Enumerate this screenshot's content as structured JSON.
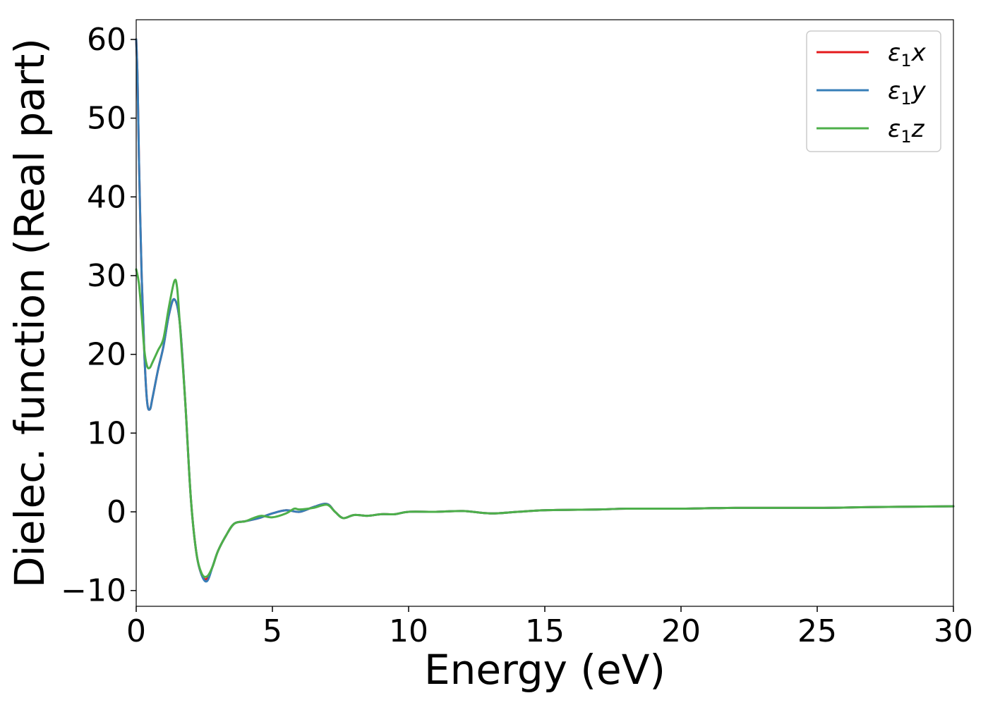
{
  "chart_data": {
    "type": "line",
    "xlabel": "Energy (eV)",
    "ylabel": "Dielec. function (Real part)",
    "xlim": [
      0,
      30
    ],
    "ylim": [
      -12,
      62.5
    ],
    "xticks": [
      0,
      5,
      10,
      15,
      20,
      25,
      30
    ],
    "xtick_labels": [
      "0",
      "5",
      "10",
      "15",
      "20",
      "25",
      "30"
    ],
    "yticks": [
      -10,
      0,
      10,
      20,
      30,
      40,
      50,
      60
    ],
    "ytick_labels": [
      "−10",
      "0",
      "10",
      "20",
      "30",
      "40",
      "50",
      "60"
    ],
    "grid": false,
    "legend_position": "top-right",
    "series": [
      {
        "name": "ε₁x",
        "legend_main": "ε",
        "legend_sub": "1",
        "legend_suffix": "x",
        "color": "#e41a1c",
        "x": [
          0,
          0.05,
          0.1,
          0.2,
          0.3,
          0.4,
          0.5,
          0.6,
          0.8,
          1.0,
          1.2,
          1.4,
          1.6,
          1.8,
          2.0,
          2.2,
          2.4,
          2.6,
          2.8,
          3.0,
          3.3,
          3.6,
          4.0,
          4.5,
          5.0,
          5.5,
          6.0,
          6.5,
          7.0,
          7.3,
          7.6,
          8.0,
          8.5,
          9.0,
          9.5,
          10.0,
          11.0,
          12.0,
          13.0,
          14.0,
          15.0,
          17.0,
          18.0,
          20.0,
          22.0,
          25.0,
          27.0,
          30.0
        ],
        "y": [
          60,
          55,
          45,
          30,
          20,
          14,
          13,
          14.5,
          18,
          21,
          25,
          27,
          24,
          14,
          2,
          -5,
          -8,
          -8.5,
          -7,
          -5,
          -3,
          -1.5,
          -1.2,
          -0.8,
          -0.2,
          0.2,
          0,
          0.6,
          1.0,
          0,
          -0.8,
          -0.4,
          -0.5,
          -0.3,
          -0.3,
          0,
          0,
          0.1,
          -0.2,
          0,
          0.2,
          0.3,
          0.4,
          0.4,
          0.5,
          0.5,
          0.6,
          0.7
        ]
      },
      {
        "name": "ε₁y",
        "legend_main": "ε",
        "legend_sub": "1",
        "legend_suffix": "y",
        "color": "#377eb8",
        "x": [
          0,
          0.05,
          0.1,
          0.2,
          0.3,
          0.4,
          0.5,
          0.6,
          0.8,
          1.0,
          1.2,
          1.4,
          1.6,
          1.8,
          2.0,
          2.2,
          2.4,
          2.6,
          2.8,
          3.0,
          3.3,
          3.6,
          4.0,
          4.5,
          5.0,
          5.5,
          6.0,
          6.5,
          7.0,
          7.3,
          7.6,
          8.0,
          8.5,
          9.0,
          9.5,
          10.0,
          11.0,
          12.0,
          13.0,
          14.0,
          15.0,
          17.0,
          18.0,
          20.0,
          22.0,
          25.0,
          27.0,
          30.0
        ],
        "y": [
          60,
          55,
          45,
          30,
          20,
          14,
          13,
          14.5,
          18,
          21,
          25,
          27,
          24,
          14,
          2,
          -5,
          -8,
          -8.8,
          -7,
          -5,
          -3,
          -1.5,
          -1.2,
          -0.8,
          -0.2,
          0.2,
          0,
          0.6,
          1.0,
          0,
          -0.8,
          -0.4,
          -0.5,
          -0.3,
          -0.3,
          0,
          0,
          0.1,
          -0.2,
          0,
          0.2,
          0.3,
          0.4,
          0.4,
          0.5,
          0.5,
          0.6,
          0.7
        ]
      },
      {
        "name": "ε₁z",
        "legend_main": "ε",
        "legend_sub": "1",
        "legend_suffix": "z",
        "color": "#4daf4a",
        "x": [
          0,
          0.1,
          0.2,
          0.3,
          0.4,
          0.5,
          0.6,
          0.8,
          1.0,
          1.2,
          1.4,
          1.5,
          1.6,
          1.8,
          2.0,
          2.2,
          2.4,
          2.6,
          2.8,
          3.0,
          3.3,
          3.6,
          4.0,
          4.3,
          4.6,
          5.0,
          5.5,
          5.8,
          6.0,
          6.5,
          7.0,
          7.3,
          7.6,
          8.0,
          8.5,
          9.0,
          9.5,
          10.0,
          11.0,
          12.0,
          13.0,
          14.0,
          15.0,
          17.0,
          18.0,
          20.0,
          22.0,
          25.0,
          27.0,
          30.0
        ],
        "y": [
          30.8,
          29,
          25,
          20.5,
          18.5,
          18.3,
          19,
          20.5,
          22,
          26,
          29.3,
          28.5,
          24,
          14,
          2,
          -5,
          -7.8,
          -8.2,
          -7,
          -5,
          -3,
          -1.5,
          -1.2,
          -0.8,
          -0.5,
          -0.7,
          -0.2,
          0.4,
          0.3,
          0.5,
          0.9,
          0,
          -0.8,
          -0.4,
          -0.5,
          -0.3,
          -0.3,
          0,
          0,
          0.1,
          -0.2,
          0,
          0.2,
          0.3,
          0.4,
          0.4,
          0.5,
          0.5,
          0.6,
          0.7
        ]
      }
    ]
  }
}
